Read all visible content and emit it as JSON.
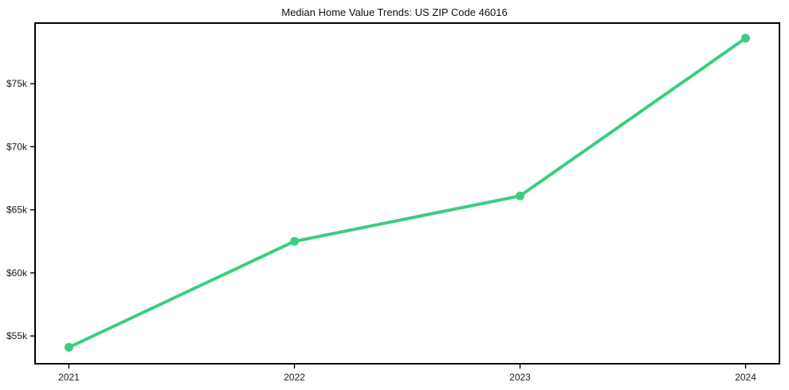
{
  "chart_data": {
    "type": "line",
    "title": "Median Home Value Trends: US ZIP Code 46016",
    "xlabel": "",
    "ylabel": "",
    "x": [
      2021,
      2022,
      2023,
      2024
    ],
    "x_tick_labels": [
      "2021",
      "2022",
      "2023",
      "2024"
    ],
    "values": [
      54100,
      62500,
      66100,
      78600
    ],
    "y_ticks": [
      {
        "value": 55000,
        "label": "$55k"
      },
      {
        "value": 60000,
        "label": "$60k"
      },
      {
        "value": 65000,
        "label": "$65k"
      },
      {
        "value": 70000,
        "label": "$70k"
      },
      {
        "value": 75000,
        "label": "$75k"
      }
    ],
    "xlim": [
      2020.85,
      2024.15
    ],
    "ylim": [
      52800,
      79800
    ],
    "grid": false,
    "legend": "none",
    "marker": "circle",
    "line_color": "#3ccd80",
    "axis_color": "#000000",
    "text_color": "#1c1c1c",
    "background": "#ffffff"
  }
}
